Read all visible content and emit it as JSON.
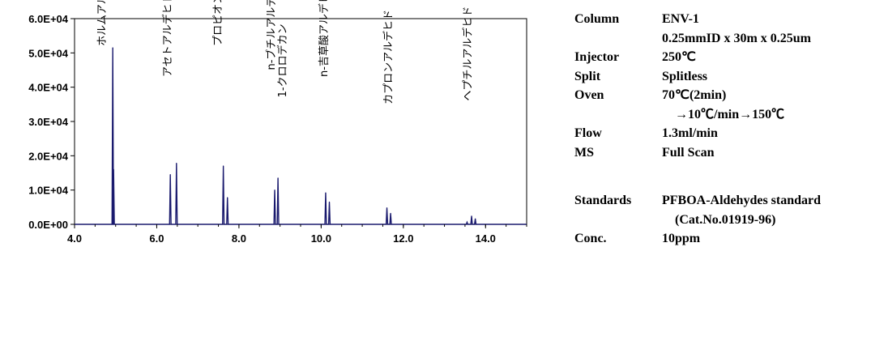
{
  "chart_data": {
    "type": "line",
    "xlim": [
      4.0,
      15.0
    ],
    "ylim": [
      0,
      60000
    ],
    "x_ticks": [
      "4.0",
      "6.0",
      "8.0",
      "10.0",
      "12.0",
      "14.0"
    ],
    "x_tick_values": [
      4,
      6,
      8,
      10,
      12,
      14
    ],
    "y_ticks": [
      "0.0E+00",
      "1.0E+04",
      "2.0E+04",
      "3.0E+04",
      "4.0E+04",
      "5.0E+04",
      "6.0E+04"
    ],
    "y_tick_values": [
      0,
      10000,
      20000,
      30000,
      40000,
      50000,
      60000
    ],
    "line_color": "#1a1a6e",
    "peaks": [
      {
        "x": 4.93,
        "y": 51500
      },
      {
        "x": 4.95,
        "y": 16000
      },
      {
        "x": 6.33,
        "y": 14500
      },
      {
        "x": 6.48,
        "y": 17800
      },
      {
        "x": 7.62,
        "y": 17000
      },
      {
        "x": 7.72,
        "y": 7800
      },
      {
        "x": 8.87,
        "y": 10000
      },
      {
        "x": 8.95,
        "y": 13500
      },
      {
        "x": 10.11,
        "y": 9200
      },
      {
        "x": 10.2,
        "y": 6500
      },
      {
        "x": 11.6,
        "y": 4800
      },
      {
        "x": 11.69,
        "y": 3200
      },
      {
        "x": 13.55,
        "y": 600
      },
      {
        "x": 13.66,
        "y": 2400
      },
      {
        "x": 13.75,
        "y": 1600
      }
    ],
    "annotations": [
      {
        "text": "ホルムアルデヒド",
        "x": 4.75,
        "y": 52000
      },
      {
        "text": "アセトアルデヒド",
        "x": 6.35,
        "y": 43000
      },
      {
        "text": "プロピオンアルデヒド",
        "x": 7.57,
        "y": 52000
      },
      {
        "text": "n-ブチルアルデヒド",
        "x": 8.87,
        "y": 45000
      },
      {
        "text": "1-クロロデカン",
        "x": 9.15,
        "y": 37000
      },
      {
        "text": "n-吉草酸アルデヒド",
        "x": 10.15,
        "y": 43000
      },
      {
        "text": "カプロンアルデヒド",
        "x": 11.72,
        "y": 35000
      },
      {
        "text": "ヘプチルアルデヒド",
        "x": 13.65,
        "y": 36000
      }
    ]
  },
  "conditions": [
    {
      "key": "Column",
      "value": "ENV-1"
    },
    {
      "key": "",
      "value": "0.25mmID x 30m x 0.25um"
    },
    {
      "key": "Injector",
      "value": "250℃"
    },
    {
      "key": "Split",
      "value": "Splitless"
    },
    {
      "key": "Oven",
      "value": "70℃(2min)"
    },
    {
      "key": "",
      "value": "　→10℃/min→150℃"
    },
    {
      "key": "Flow",
      "value": "1.3ml/min"
    },
    {
      "key": "MS",
      "value": "Full Scan"
    }
  ],
  "conditions2": [
    {
      "key": "Standards",
      "value": "PFBOA-Aldehydes standard"
    },
    {
      "key": "",
      "value": "　(Cat.No.01919-96)"
    },
    {
      "key": "Conc.",
      "value": "10ppm"
    }
  ]
}
